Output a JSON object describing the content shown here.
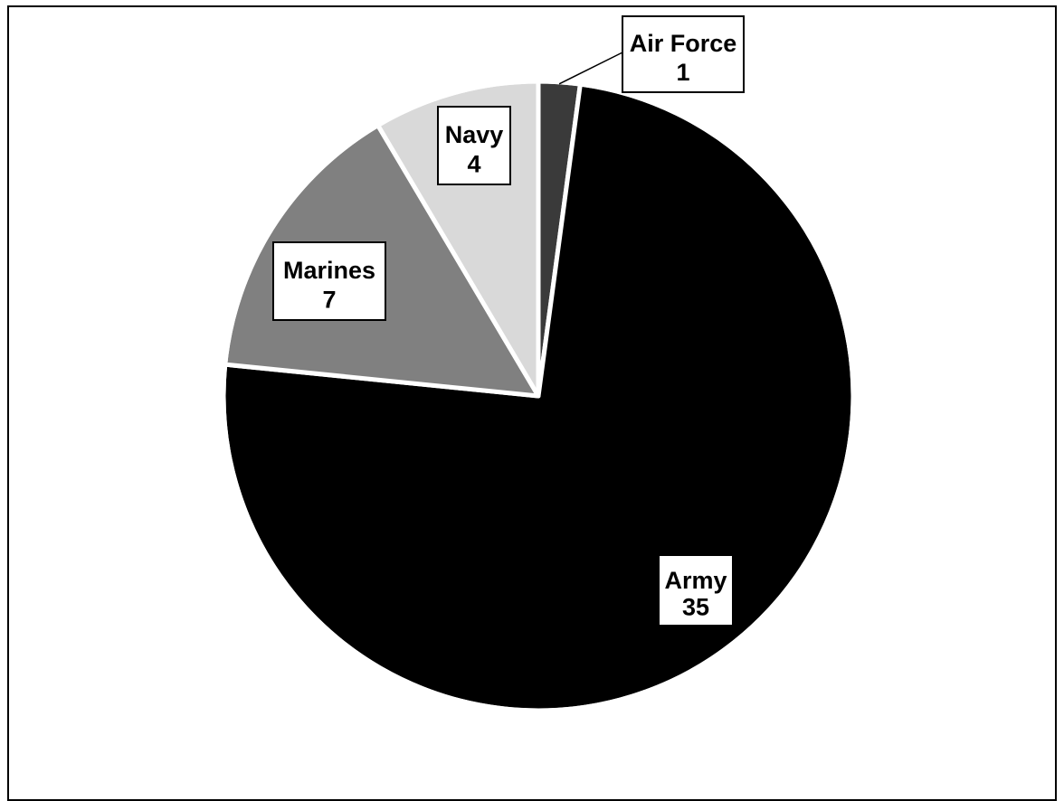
{
  "chart_data": {
    "type": "pie",
    "title": "",
    "slices": [
      {
        "label": "Air Force",
        "value": 1,
        "color": "#3a3a3a"
      },
      {
        "label": "Army",
        "value": 35,
        "color": "#000000"
      },
      {
        "label": "Marines",
        "value": 7,
        "color": "#808080"
      },
      {
        "label": "Navy",
        "value": 4,
        "color": "#d9d9d9"
      }
    ],
    "slice_border_color": "#ffffff",
    "label_style": "boxed-callouts",
    "legend": "none"
  }
}
